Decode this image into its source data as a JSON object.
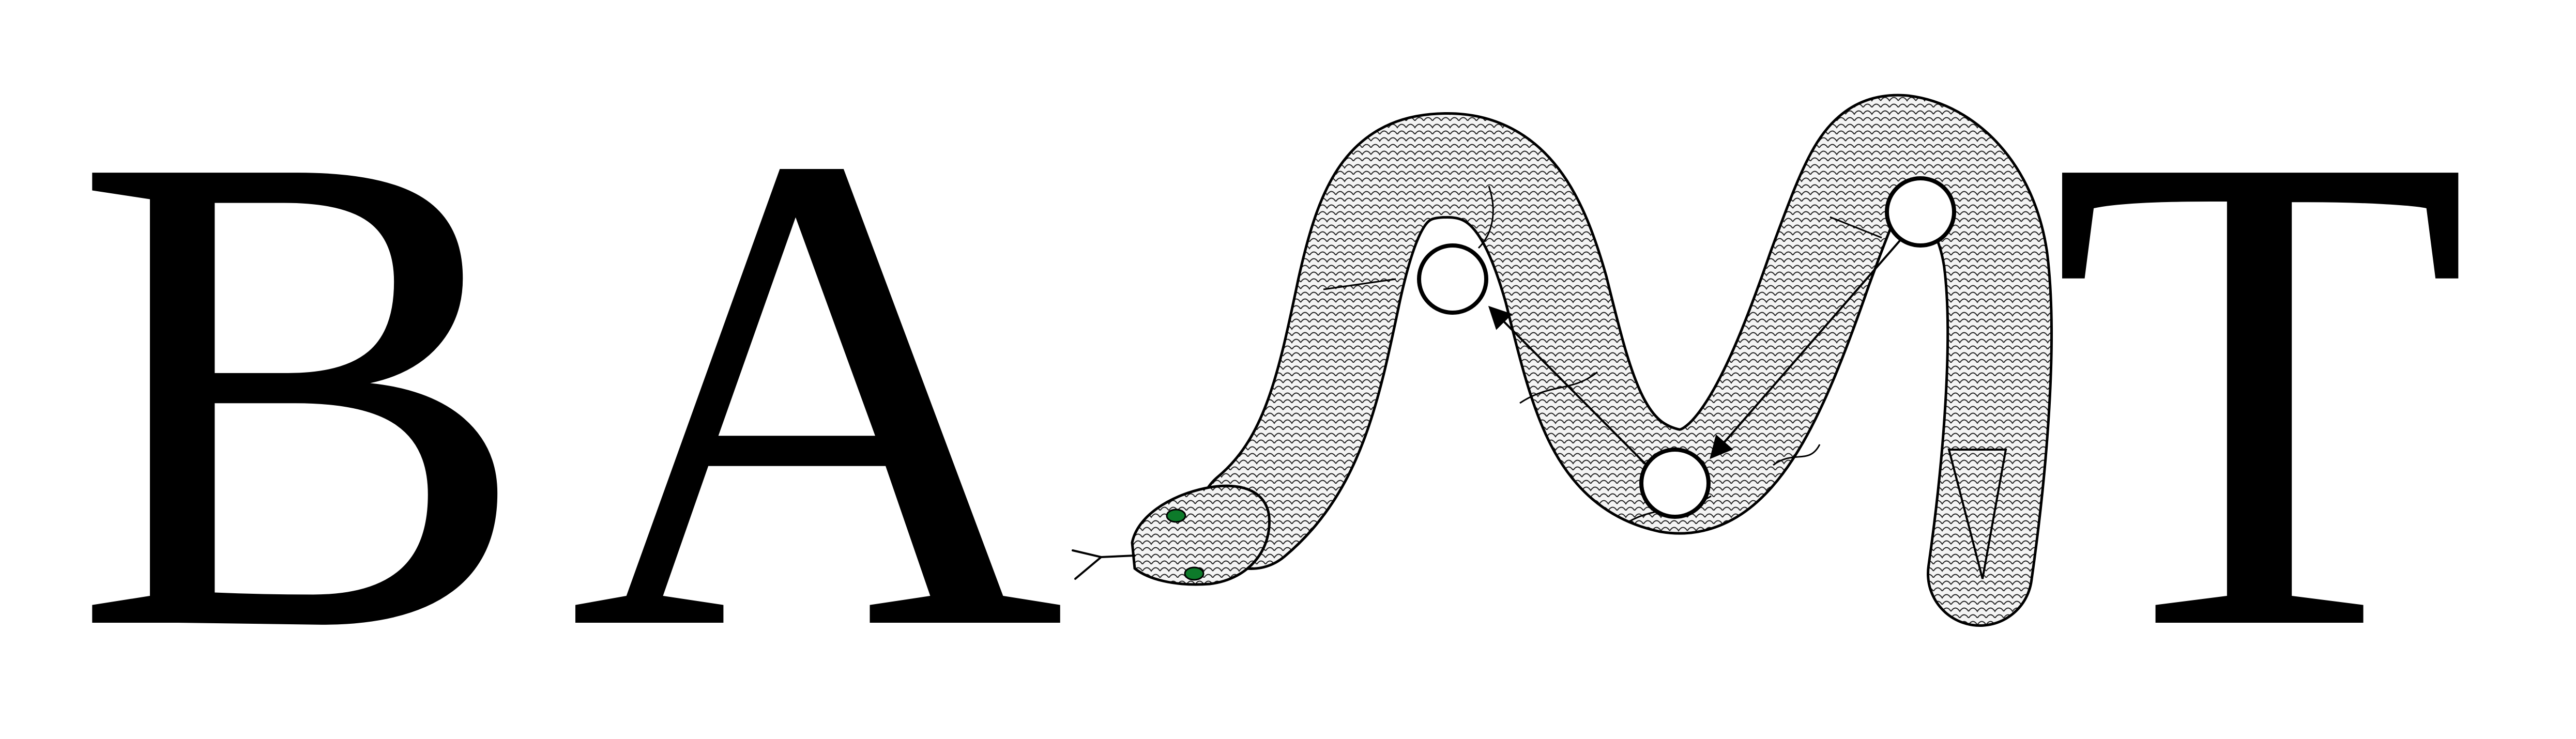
{
  "logo": {
    "letters": [
      "B",
      "A",
      "T"
    ],
    "ink_color": "#000000",
    "scale_fill_color": "#f4f4f4",
    "eye_color": "#0d7a2a",
    "background": "#ffffff",
    "icons": [
      "snake-icon",
      "arrow-icon",
      "node-circle-icon"
    ]
  }
}
